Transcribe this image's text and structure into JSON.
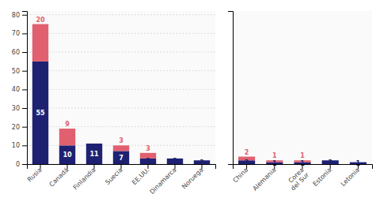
{
  "chart_data": [
    {
      "type": "bar",
      "stacked": true,
      "categories": [
        "Rusia",
        "Canadá",
        "Finlandia",
        "Suecia",
        "EE.UU.",
        "Dinamarca",
        "Noruega"
      ],
      "series": [
        {
          "color": "#1e2172",
          "values": [
            55,
            10,
            11,
            7,
            3,
            3,
            2
          ]
        },
        {
          "color": "#e06070",
          "values": [
            20,
            9,
            0,
            3,
            3,
            0,
            0
          ]
        }
      ],
      "ylim": [
        0,
        82
      ],
      "yticks": [
        0,
        10,
        20,
        30,
        40,
        50,
        60,
        70,
        80
      ],
      "grid": true,
      "data_labels": true
    },
    {
      "type": "bar",
      "stacked": true,
      "categories": [
        "China",
        "Alemania",
        "Corea\ndel Sur",
        "Estonia",
        "Letonia"
      ],
      "series": [
        {
          "color": "#1e2172",
          "values": [
            2,
            1,
            1,
            2,
            1
          ]
        },
        {
          "color": "#e06070",
          "values": [
            2,
            1,
            1,
            0,
            0
          ]
        }
      ],
      "ylim": [
        0,
        82
      ],
      "grid": false,
      "data_labels": true,
      "tick_labels": "x"
    }
  ]
}
